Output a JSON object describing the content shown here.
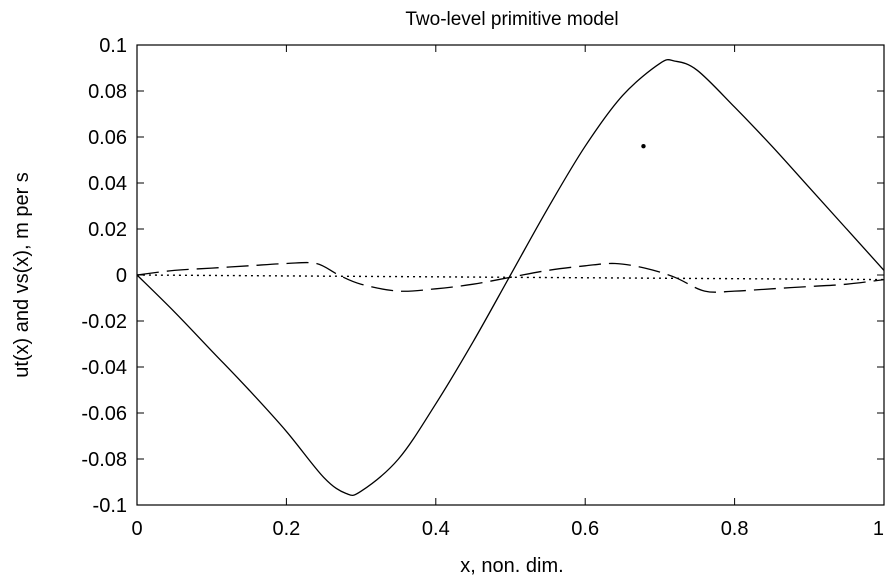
{
  "chart_data": {
    "type": "line",
    "title": "Two-level primitive model",
    "xlabel": "x, non. dim.",
    "ylabel": "ut(x) and vs(x), m per s",
    "xlim": [
      0,
      1
    ],
    "ylim": [
      -0.1,
      0.1
    ],
    "xticks": [
      {
        "value": 0,
        "label": "0"
      },
      {
        "value": 0.2,
        "label": "0.2"
      },
      {
        "value": 0.4,
        "label": "0.4"
      },
      {
        "value": 0.6,
        "label": "0.6"
      },
      {
        "value": 0.8,
        "label": "0.8"
      },
      {
        "value": 1,
        "label": "1"
      }
    ],
    "yticks": [
      {
        "value": 0.1,
        "label": "0.1"
      },
      {
        "value": 0.08,
        "label": "0.08"
      },
      {
        "value": 0.06,
        "label": "0.06"
      },
      {
        "value": 0.04,
        "label": "0.04"
      },
      {
        "value": 0.02,
        "label": "0.02"
      },
      {
        "value": 0,
        "label": "0"
      },
      {
        "value": -0.02,
        "label": "-0.02"
      },
      {
        "value": -0.04,
        "label": "-0.04"
      },
      {
        "value": -0.06,
        "label": "-0.06"
      },
      {
        "value": -0.08,
        "label": "-0.08"
      },
      {
        "value": -0.1,
        "label": "-0.1"
      }
    ],
    "grid": false,
    "series": [
      {
        "style": "solid",
        "color": "#000000",
        "x": [
          0,
          0.05,
          0.1,
          0.15,
          0.2,
          0.25,
          0.28,
          0.3,
          0.35,
          0.4,
          0.45,
          0.5,
          0.55,
          0.6,
          0.65,
          0.7,
          0.72,
          0.75,
          0.8,
          0.85,
          0.9,
          0.95,
          1.0
        ],
        "y": [
          0,
          -0.016,
          -0.033,
          -0.05,
          -0.068,
          -0.088,
          -0.095,
          -0.094,
          -0.08,
          -0.056,
          -0.029,
          0,
          0.029,
          0.056,
          0.078,
          0.092,
          0.093,
          0.089,
          0.073,
          0.056,
          0.038,
          0.02,
          0.002
        ]
      },
      {
        "style": "dashed",
        "color": "#000000",
        "x": [
          0,
          0.05,
          0.1,
          0.15,
          0.2,
          0.24,
          0.27,
          0.3,
          0.35,
          0.4,
          0.45,
          0.5,
          0.55,
          0.6,
          0.64,
          0.68,
          0.72,
          0.76,
          0.8,
          0.85,
          0.9,
          0.95,
          1.0
        ],
        "y": [
          0,
          0.002,
          0.003,
          0.004,
          0.005,
          0.005,
          0.0,
          -0.004,
          -0.007,
          -0.006,
          -0.004,
          -0.001,
          0.002,
          0.004,
          0.005,
          0.003,
          -0.001,
          -0.007,
          -0.007,
          -0.006,
          -0.005,
          -0.004,
          -0.002
        ]
      },
      {
        "style": "dotted",
        "color": "#000000",
        "x": [
          0,
          0.5,
          1.0
        ],
        "y": [
          0,
          -0.001,
          -0.002
        ]
      }
    ],
    "annotations": [
      {
        "type": "marker",
        "x": 0.678,
        "y": 0.056,
        "shape": "point"
      }
    ]
  }
}
